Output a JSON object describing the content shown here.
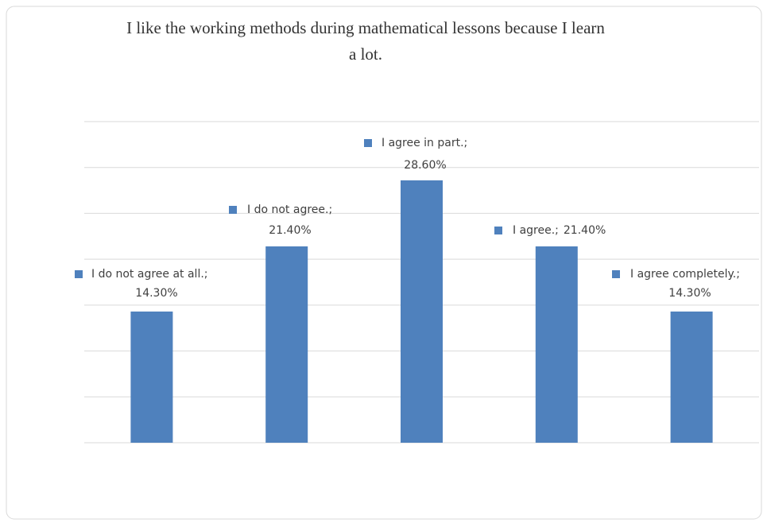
{
  "chart_data": {
    "type": "bar",
    "title_lines": [
      "I like the working  methods  during  mathematical  lessons  because I learn",
      "a lot."
    ],
    "categories": [
      "I do not agree at all.",
      "I do not agree.",
      "I agree in part.",
      "I agree.",
      "I agree completely."
    ],
    "values": [
      14.3,
      21.4,
      28.6,
      21.4,
      14.3
    ],
    "value_labels": [
      "14.30%",
      "21.40%",
      "28.60%",
      "21.40%",
      "14.30%"
    ],
    "label_separator": ";",
    "color": "#4f81bd",
    "ylim": [
      0,
      35
    ],
    "yticks": [
      0,
      5,
      10,
      15,
      20,
      25,
      30,
      35
    ],
    "grid": true
  }
}
